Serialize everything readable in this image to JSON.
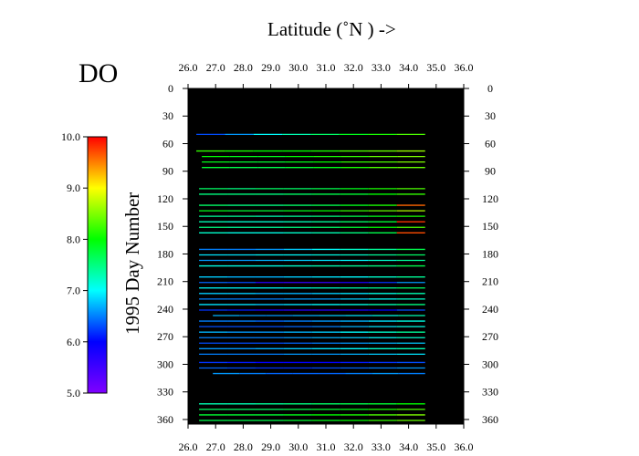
{
  "chart_data": {
    "type": "heatmap",
    "variable": "DO",
    "xlabel": "Latitude  (˚N )  ->",
    "ylabel": "1995  Day Number",
    "x_ticks": [
      "26.0",
      "27.0",
      "28.0",
      "29.0",
      "30.0",
      "31.0",
      "32.0",
      "33.0",
      "34.0",
      "35.0",
      "36.0"
    ],
    "y_ticks": [
      "0",
      "30",
      "60",
      "90",
      "120",
      "150",
      "180",
      "210",
      "240",
      "270",
      "300",
      "330",
      "360"
    ],
    "xlim": [
      26.0,
      36.0
    ],
    "ylim": [
      0,
      365
    ],
    "colorbar": {
      "range": [
        5.0,
        10.0
      ],
      "ticks": [
        "5.0",
        "6.0",
        "7.0",
        "8.0",
        "9.0",
        "10.0"
      ]
    },
    "background_color": "#000000",
    "tracks": [
      {
        "day": 50,
        "lat_start": 26.3,
        "lat_end": 34.6,
        "values": [
          6.3,
          6.6,
          7.0,
          7.3,
          7.6,
          7.9,
          8.1,
          8.3
        ]
      },
      {
        "day": 68,
        "lat_start": 26.3,
        "lat_end": 34.6,
        "values": [
          8.2,
          8.1,
          8.0,
          8.0,
          8.1,
          8.3,
          8.4,
          8.6
        ]
      },
      {
        "day": 74,
        "lat_start": 26.5,
        "lat_end": 34.6,
        "values": [
          8.0,
          7.9,
          7.9,
          8.0,
          8.1,
          8.2,
          8.4,
          8.5
        ]
      },
      {
        "day": 80,
        "lat_start": 26.5,
        "lat_end": 34.6,
        "values": [
          7.9,
          7.8,
          7.8,
          7.9,
          8.0,
          8.2,
          8.3,
          8.5
        ]
      },
      {
        "day": 86,
        "lat_start": 26.5,
        "lat_end": 34.6,
        "values": [
          7.8,
          7.7,
          7.7,
          7.8,
          7.9,
          8.1,
          8.3,
          8.4
        ]
      },
      {
        "day": 109,
        "lat_start": 26.4,
        "lat_end": 34.6,
        "values": [
          7.6,
          7.5,
          7.6,
          7.6,
          7.7,
          7.9,
          8.1,
          8.3
        ]
      },
      {
        "day": 115,
        "lat_start": 26.4,
        "lat_end": 34.6,
        "values": [
          7.5,
          7.5,
          7.5,
          7.6,
          7.7,
          7.8,
          8.0,
          8.2
        ]
      },
      {
        "day": 127,
        "lat_start": 26.4,
        "lat_end": 34.6,
        "values": [
          7.6,
          7.5,
          7.5,
          7.6,
          7.7,
          7.9,
          8.1,
          9.6
        ]
      },
      {
        "day": 133,
        "lat_start": 26.4,
        "lat_end": 34.6,
        "values": [
          7.9,
          7.8,
          7.8,
          7.9,
          8.0,
          8.2,
          8.4,
          8.7
        ]
      },
      {
        "day": 139,
        "lat_start": 26.4,
        "lat_end": 34.6,
        "values": [
          7.4,
          7.4,
          7.3,
          7.4,
          7.5,
          7.7,
          7.9,
          8.1
        ]
      },
      {
        "day": 145,
        "lat_start": 26.4,
        "lat_end": 34.6,
        "values": [
          7.3,
          7.2,
          7.2,
          7.3,
          7.4,
          7.6,
          7.8,
          9.8
        ]
      },
      {
        "day": 151,
        "lat_start": 26.4,
        "lat_end": 34.6,
        "values": [
          7.5,
          7.4,
          7.4,
          7.5,
          7.6,
          7.8,
          8.0,
          8.3
        ]
      },
      {
        "day": 157,
        "lat_start": 26.4,
        "lat_end": 34.6,
        "values": [
          7.2,
          7.1,
          7.1,
          7.2,
          7.3,
          7.5,
          7.7,
          9.7
        ]
      },
      {
        "day": 175,
        "lat_start": 26.4,
        "lat_end": 34.6,
        "values": [
          6.5,
          6.5,
          6.6,
          6.8,
          7.0,
          7.2,
          7.4,
          7.7
        ]
      },
      {
        "day": 181,
        "lat_start": 26.4,
        "lat_end": 34.6,
        "values": [
          6.9,
          6.9,
          7.0,
          7.0,
          7.1,
          7.2,
          7.4,
          7.6
        ]
      },
      {
        "day": 187,
        "lat_start": 26.4,
        "lat_end": 34.6,
        "values": [
          6.6,
          6.6,
          6.7,
          6.8,
          6.9,
          7.0,
          7.2,
          7.4
        ]
      },
      {
        "day": 193,
        "lat_start": 26.4,
        "lat_end": 34.6,
        "values": [
          7.1,
          7.1,
          7.1,
          7.2,
          7.3,
          7.4,
          7.5,
          7.7
        ]
      },
      {
        "day": 205,
        "lat_start": 26.4,
        "lat_end": 34.6,
        "values": [
          6.8,
          6.7,
          6.7,
          6.8,
          6.9,
          7.0,
          7.2,
          7.4
        ]
      },
      {
        "day": 211,
        "lat_start": 26.4,
        "lat_end": 34.6,
        "values": [
          6.4,
          6.3,
          5.7,
          5.6,
          5.6,
          5.8,
          6.2,
          6.6
        ]
      },
      {
        "day": 217,
        "lat_start": 26.4,
        "lat_end": 34.6,
        "values": [
          7.0,
          7.0,
          7.0,
          7.1,
          7.2,
          7.3,
          7.4,
          7.6
        ]
      },
      {
        "day": 223,
        "lat_start": 26.4,
        "lat_end": 34.6,
        "values": [
          6.8,
          6.8,
          6.7,
          6.7,
          6.8,
          6.9,
          7.1,
          7.3
        ]
      },
      {
        "day": 229,
        "lat_start": 26.4,
        "lat_end": 34.6,
        "values": [
          6.5,
          6.5,
          6.5,
          6.6,
          6.6,
          6.8,
          7.0,
          7.2
        ]
      },
      {
        "day": 235,
        "lat_start": 26.4,
        "lat_end": 34.6,
        "values": [
          6.9,
          6.9,
          6.8,
          6.9,
          7.0,
          7.1,
          7.3,
          7.5
        ]
      },
      {
        "day": 241,
        "lat_start": 26.4,
        "lat_end": 34.6,
        "values": [
          6.2,
          6.1,
          5.8,
          5.7,
          5.7,
          5.8,
          6.0,
          6.3
        ]
      },
      {
        "day": 247,
        "lat_start": 26.9,
        "lat_end": 34.6,
        "values": [
          6.7,
          6.6,
          6.6,
          6.7,
          6.8,
          6.9,
          7.1,
          7.3
        ]
      },
      {
        "day": 253,
        "lat_start": 26.4,
        "lat_end": 34.6,
        "values": [
          6.5,
          6.5,
          6.4,
          6.5,
          6.6,
          6.7,
          6.9,
          7.1
        ]
      },
      {
        "day": 259,
        "lat_start": 26.4,
        "lat_end": 34.6,
        "values": [
          6.3,
          6.3,
          6.3,
          6.4,
          6.5,
          6.7,
          6.9,
          7.1
        ]
      },
      {
        "day": 265,
        "lat_start": 26.4,
        "lat_end": 34.6,
        "values": [
          6.7,
          6.6,
          6.6,
          6.7,
          6.8,
          7.0,
          7.2,
          7.4
        ]
      },
      {
        "day": 271,
        "lat_start": 26.4,
        "lat_end": 34.6,
        "values": [
          6.5,
          6.5,
          6.5,
          6.6,
          6.7,
          6.8,
          7.0,
          7.2
        ]
      },
      {
        "day": 277,
        "lat_start": 26.4,
        "lat_end": 34.6,
        "values": [
          6.3,
          6.3,
          6.3,
          6.4,
          6.5,
          6.6,
          6.7,
          6.8
        ]
      },
      {
        "day": 283,
        "lat_start": 26.4,
        "lat_end": 34.6,
        "values": [
          6.6,
          6.6,
          6.7,
          6.8,
          6.9,
          7.0,
          7.2,
          7.3
        ]
      },
      {
        "day": 289,
        "lat_start": 26.4,
        "lat_end": 34.6,
        "values": [
          6.5,
          6.5,
          6.5,
          6.6,
          6.6,
          6.7,
          6.8,
          6.9
        ]
      },
      {
        "day": 298,
        "lat_start": 26.4,
        "lat_end": 34.6,
        "values": [
          6.2,
          6.1,
          6.0,
          6.0,
          6.0,
          6.1,
          6.2,
          6.3
        ]
      },
      {
        "day": 304,
        "lat_start": 26.4,
        "lat_end": 34.6,
        "values": [
          6.4,
          6.3,
          6.2,
          6.2,
          6.3,
          6.4,
          6.5,
          6.6
        ]
      },
      {
        "day": 310,
        "lat_start": 26.9,
        "lat_end": 34.6,
        "values": [
          6.6,
          6.5,
          6.4,
          6.4,
          6.4,
          6.5,
          6.6,
          6.5
        ]
      },
      {
        "day": 343,
        "lat_start": 26.4,
        "lat_end": 34.6,
        "values": [
          7.3,
          7.3,
          7.4,
          7.5,
          7.6,
          7.7,
          7.8,
          8.0
        ]
      },
      {
        "day": 349,
        "lat_start": 26.4,
        "lat_end": 34.6,
        "values": [
          7.6,
          7.6,
          7.6,
          7.7,
          7.8,
          7.9,
          8.1,
          8.3
        ]
      },
      {
        "day": 355,
        "lat_start": 26.4,
        "lat_end": 34.6,
        "values": [
          7.8,
          7.8,
          7.8,
          7.9,
          8.0,
          8.1,
          8.3,
          8.5
        ]
      },
      {
        "day": 361,
        "lat_start": 26.4,
        "lat_end": 34.6,
        "values": [
          7.7,
          7.7,
          7.7,
          7.8,
          7.9,
          8.0,
          8.2,
          8.4
        ]
      }
    ]
  }
}
